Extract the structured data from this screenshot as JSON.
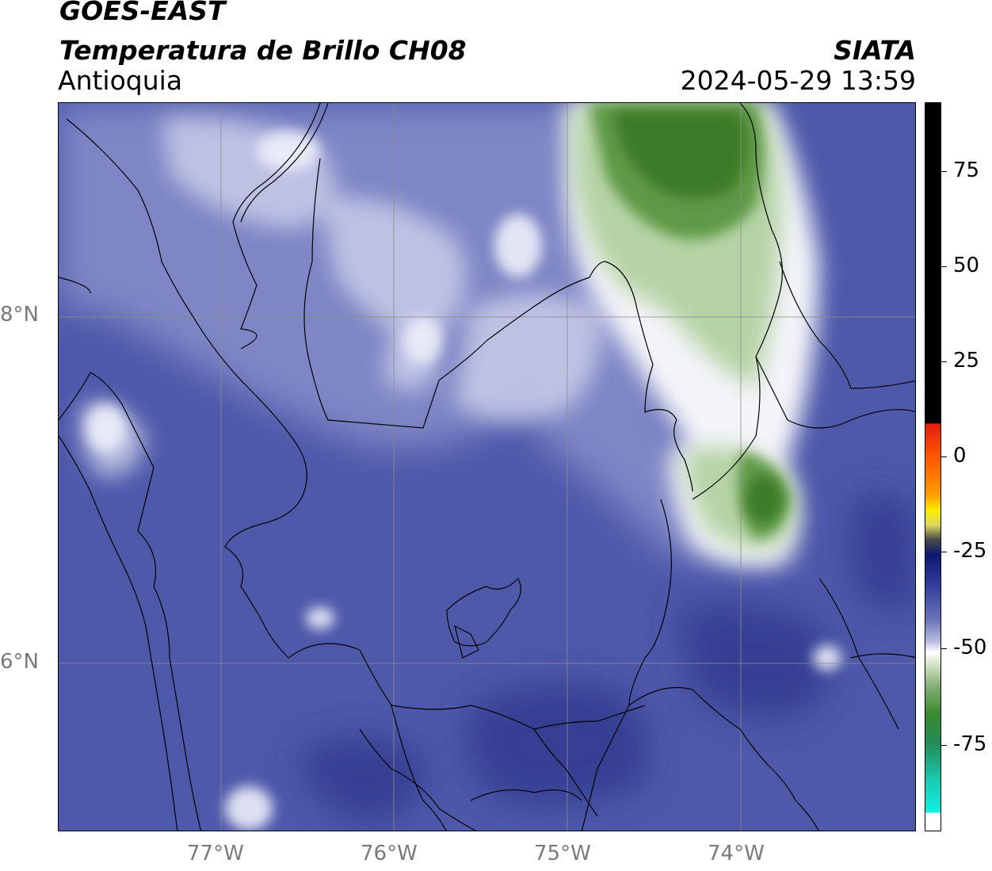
{
  "header": {
    "satellite": "GOES-EAST",
    "product": "Temperatura de Brillo CH08",
    "organization": "SIATA",
    "region": "Antioquia",
    "datetime": "2024-05-29 13:59"
  },
  "map": {
    "lat_ticks": [
      "8°N",
      "6°N"
    ],
    "lon_ticks": [
      "77°W",
      "76°W",
      "75°W",
      "74°W"
    ],
    "colors": {
      "background_blue": "#4a55a8",
      "deep_blue": "#2f358a",
      "cloud_white": "#f2f2f8",
      "cold_green": "#3f7f2a",
      "border_line": "#000000",
      "gridline": "#8c8c8c"
    }
  },
  "colorbar": {
    "labels": [
      "75",
      "50",
      "25",
      "0",
      "-25",
      "-50",
      "-75"
    ],
    "unit_values": [
      75,
      50,
      25,
      0,
      -25,
      -50,
      -75
    ],
    "colors": {
      "black": "#000000",
      "red": "#e51e10",
      "orange": "#f58a00",
      "yellow": "#fff200",
      "navy": "#0b1a6e",
      "blue": "#4a55a8",
      "white": "#ffffff",
      "green": "#3a8a2e",
      "teal": "#19c9b0",
      "cyan": "#12f0e0"
    }
  }
}
